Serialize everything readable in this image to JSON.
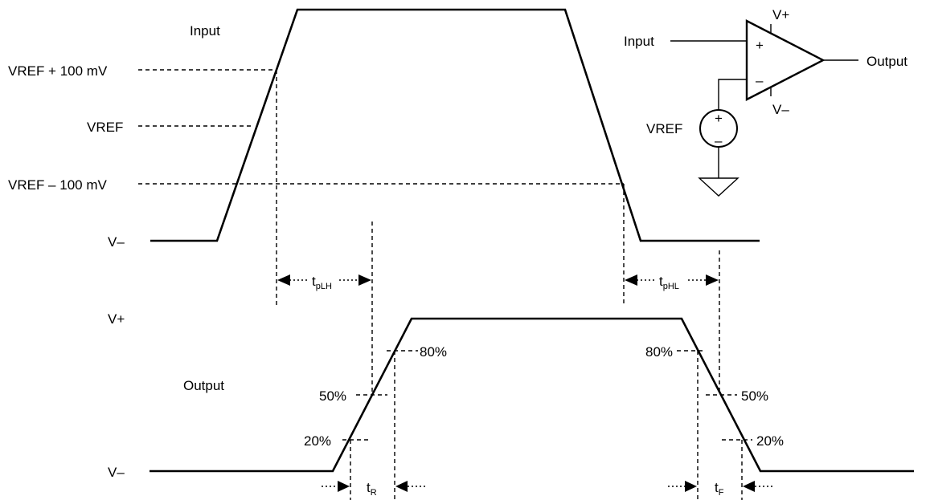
{
  "input_waveform": {
    "title": "Input",
    "levels": {
      "vref_plus": "VREF + 100 mV",
      "vref": "VREF",
      "vref_minus": "VREF – 100 mV",
      "v_minus": "V–"
    }
  },
  "output_waveform": {
    "title": "Output",
    "levels": {
      "v_plus": "V+",
      "v_minus": "V–"
    },
    "percent_labels": {
      "rise_80": "80%",
      "rise_50": "50%",
      "rise_20": "20%",
      "fall_80": "80%",
      "fall_50": "50%",
      "fall_20": "20%"
    }
  },
  "timing": {
    "tplh": {
      "main": "t",
      "sub": "pLH"
    },
    "tphl": {
      "main": "t",
      "sub": "pHL"
    },
    "tr": {
      "main": "t",
      "sub": "R"
    },
    "tf": {
      "main": "t",
      "sub": "F"
    }
  },
  "circuit": {
    "input_label": "Input",
    "output_label": "Output",
    "supply_pos": "V+",
    "supply_neg": "V–",
    "vref_label": "VREF",
    "noninverting_sign": "+",
    "inverting_sign": "–",
    "source_plus": "+",
    "source_minus": "–"
  }
}
